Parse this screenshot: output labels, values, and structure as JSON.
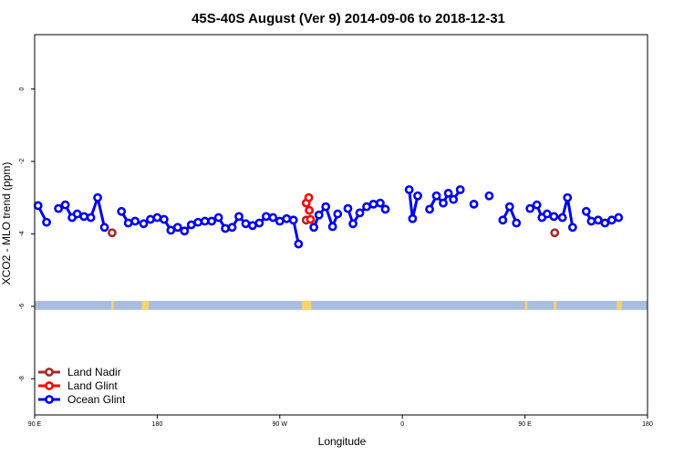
{
  "chart_data": {
    "type": "line",
    "title": "45S-40S August (Ver 9)   2014-09-06 to 2018-12-31",
    "xlabel": "Longitude",
    "ylabel": "XCO2 - MLO trend (ppm)",
    "xlim": [
      90,
      450
    ],
    "ylim": [
      -9,
      1.5
    ],
    "x_ticks": [
      {
        "value": 90,
        "label": "90 E"
      },
      {
        "value": 162,
        "label": "180"
      },
      {
        "value": 234,
        "label": "90 W"
      },
      {
        "value": 306,
        "label": "0"
      },
      {
        "value": 378,
        "label": "90 E"
      },
      {
        "value": 450,
        "label": "180"
      }
    ],
    "y_ticks": [
      {
        "value": 0,
        "label": "0"
      },
      {
        "value": -2,
        "label": "-2"
      },
      {
        "value": -4,
        "label": "-4"
      },
      {
        "value": -6,
        "label": "-6"
      },
      {
        "value": -8,
        "label": "-8"
      }
    ],
    "land_band": {
      "y_range": [
        -6.1,
        -5.85
      ],
      "ocean_color": "#a9bedf",
      "land_color": "#f7d36a",
      "land_segments": [
        [
          135,
          136.5
        ],
        [
          153,
          157
        ],
        [
          247,
          252.5
        ],
        [
          378,
          379.5
        ],
        [
          395,
          396.5
        ],
        [
          432,
          435
        ]
      ]
    },
    "series": [
      {
        "name": "Land Nadir",
        "color": "#a52a2a",
        "points": [
          [
            135.5,
            -3.97
          ],
          [
            249.5,
            -3.62
          ],
          [
            395.5,
            -3.97
          ]
        ]
      },
      {
        "name": "Land Glint",
        "color": "#ff0000",
        "points": [
          [
            249.5,
            -3.15
          ],
          [
            251,
            -3.0
          ],
          [
            251.3,
            -3.35
          ],
          [
            252,
            -3.6
          ]
        ]
      },
      {
        "name": "Ocean Glint",
        "color": "#0000ee",
        "segments": [
          [
            [
              92,
              -3.22
            ],
            [
              97,
              -3.68
            ]
          ],
          [
            [
              104,
              -3.3
            ],
            [
              108,
              -3.2
            ],
            [
              112,
              -3.55
            ],
            [
              115,
              -3.45
            ],
            [
              119,
              -3.52
            ],
            [
              123,
              -3.55
            ],
            [
              127,
              -3.0
            ],
            [
              131,
              -3.82
            ]
          ],
          [
            [
              141,
              -3.38
            ],
            [
              145,
              -3.7
            ],
            [
              149,
              -3.65
            ],
            [
              154,
              -3.72
            ],
            [
              158,
              -3.6
            ],
            [
              162,
              -3.55
            ],
            [
              166,
              -3.6
            ],
            [
              170,
              -3.9
            ],
            [
              174,
              -3.82
            ],
            [
              178,
              -3.92
            ],
            [
              182,
              -3.75
            ],
            [
              186,
              -3.68
            ],
            [
              190,
              -3.65
            ],
            [
              194,
              -3.65
            ],
            [
              198,
              -3.55
            ],
            [
              202,
              -3.85
            ],
            [
              206,
              -3.82
            ],
            [
              210,
              -3.52
            ],
            [
              214,
              -3.72
            ],
            [
              218,
              -3.77
            ],
            [
              222,
              -3.7
            ],
            [
              226,
              -3.52
            ],
            [
              230,
              -3.55
            ],
            [
              234,
              -3.65
            ],
            [
              238,
              -3.58
            ],
            [
              242,
              -3.62
            ],
            [
              245,
              -4.28
            ]
          ],
          [
            [
              254,
              -3.82
            ],
            [
              257,
              -3.48
            ],
            [
              261,
              -3.25
            ],
            [
              265,
              -3.8
            ],
            [
              268,
              -3.45
            ]
          ],
          [
            [
              274,
              -3.3
            ],
            [
              277,
              -3.72
            ],
            [
              281,
              -3.42
            ],
            [
              285,
              -3.25
            ],
            [
              289,
              -3.18
            ],
            [
              293,
              -3.15
            ],
            [
              296,
              -3.32
            ]
          ],
          [
            [
              310,
              -2.78
            ],
            [
              312,
              -3.58
            ],
            [
              315,
              -2.95
            ]
          ],
          [
            [
              322,
              -3.32
            ],
            [
              326,
              -2.95
            ],
            [
              330,
              -3.15
            ],
            [
              333,
              -2.88
            ],
            [
              336,
              -3.05
            ],
            [
              340,
              -2.78
            ]
          ],
          [
            [
              348,
              -3.18
            ]
          ],
          [
            [
              357,
              -2.95
            ]
          ],
          [
            [
              365,
              -3.62
            ],
            [
              369,
              -3.25
            ],
            [
              373,
              -3.7
            ]
          ],
          [
            [
              381,
              -3.3
            ],
            [
              385,
              -3.2
            ],
            [
              388,
              -3.55
            ],
            [
              391,
              -3.45
            ],
            [
              395,
              -3.52
            ],
            [
              400,
              -3.55
            ],
            [
              403,
              -3.0
            ],
            [
              406,
              -3.82
            ]
          ],
          [
            [
              414,
              -3.38
            ],
            [
              417,
              -3.65
            ],
            [
              421,
              -3.62
            ],
            [
              425,
              -3.7
            ],
            [
              429,
              -3.62
            ],
            [
              433,
              -3.55
            ]
          ]
        ]
      }
    ],
    "legend": {
      "position": "bottom-left",
      "entries": [
        "Land Nadir",
        "Land Glint",
        "Ocean Glint"
      ]
    },
    "grid": false
  }
}
